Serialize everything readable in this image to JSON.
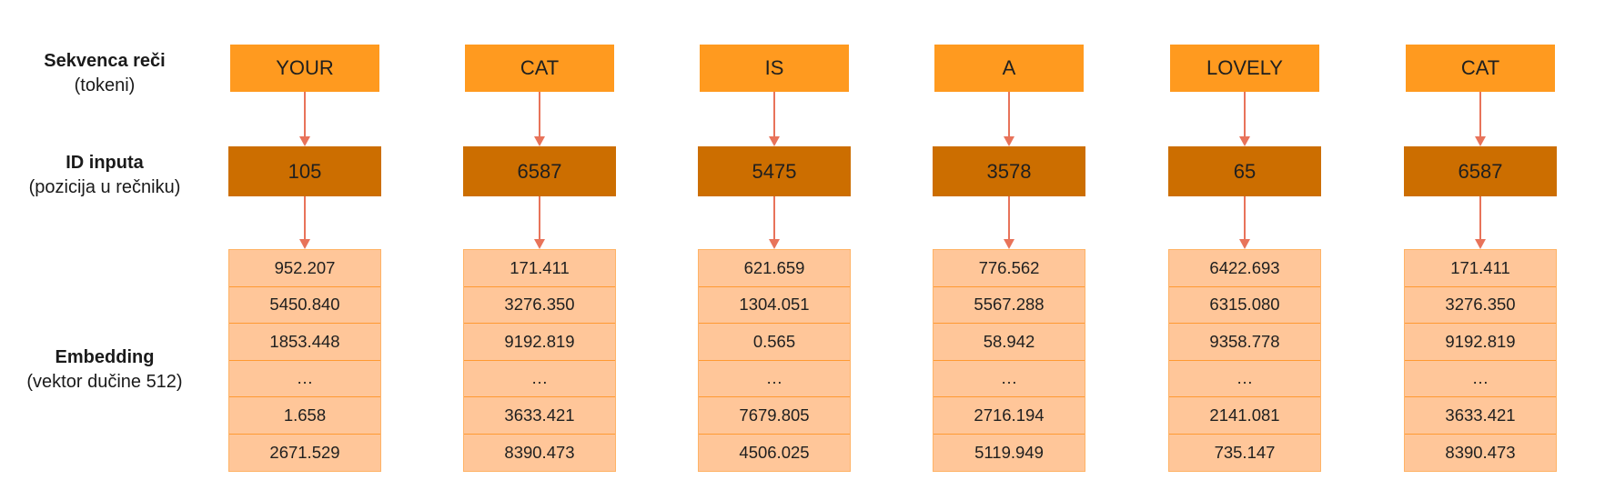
{
  "labels": {
    "tokens_title": "Sekvenca reči",
    "tokens_sub": "(tokeni)",
    "ids_title": "ID inputa",
    "ids_sub": "(pozicija u rečniku)",
    "embedding_title": "Embedding",
    "embedding_sub": "(vektor dučine 512)"
  },
  "colors": {
    "token_box": "#ff9a1f",
    "id_box": "#cc6e00",
    "embedding_cell": "#ffc699",
    "arrow": "#e8735a"
  },
  "columns": [
    {
      "token": "YOUR",
      "id": "105",
      "embedding": [
        "952.207",
        "5450.840",
        "1853.448",
        "…",
        "1.658",
        "2671.529"
      ]
    },
    {
      "token": "CAT",
      "id": "6587",
      "embedding": [
        "171.411",
        "3276.350",
        "9192.819",
        "…",
        "3633.421",
        "8390.473"
      ]
    },
    {
      "token": "IS",
      "id": "5475",
      "embedding": [
        "621.659",
        "1304.051",
        "0.565",
        "…",
        "7679.805",
        "4506.025"
      ]
    },
    {
      "token": "A",
      "id": "3578",
      "embedding": [
        "776.562",
        "5567.288",
        "58.942",
        "…",
        "2716.194",
        "5119.949"
      ]
    },
    {
      "token": "LOVELY",
      "id": "65",
      "embedding": [
        "6422.693",
        "6315.080",
        "9358.778",
        "…",
        "2141.081",
        "735.147"
      ]
    },
    {
      "token": "CAT",
      "id": "6587",
      "embedding": [
        "171.411",
        "3276.350",
        "9192.819",
        "…",
        "3633.421",
        "8390.473"
      ]
    }
  ]
}
